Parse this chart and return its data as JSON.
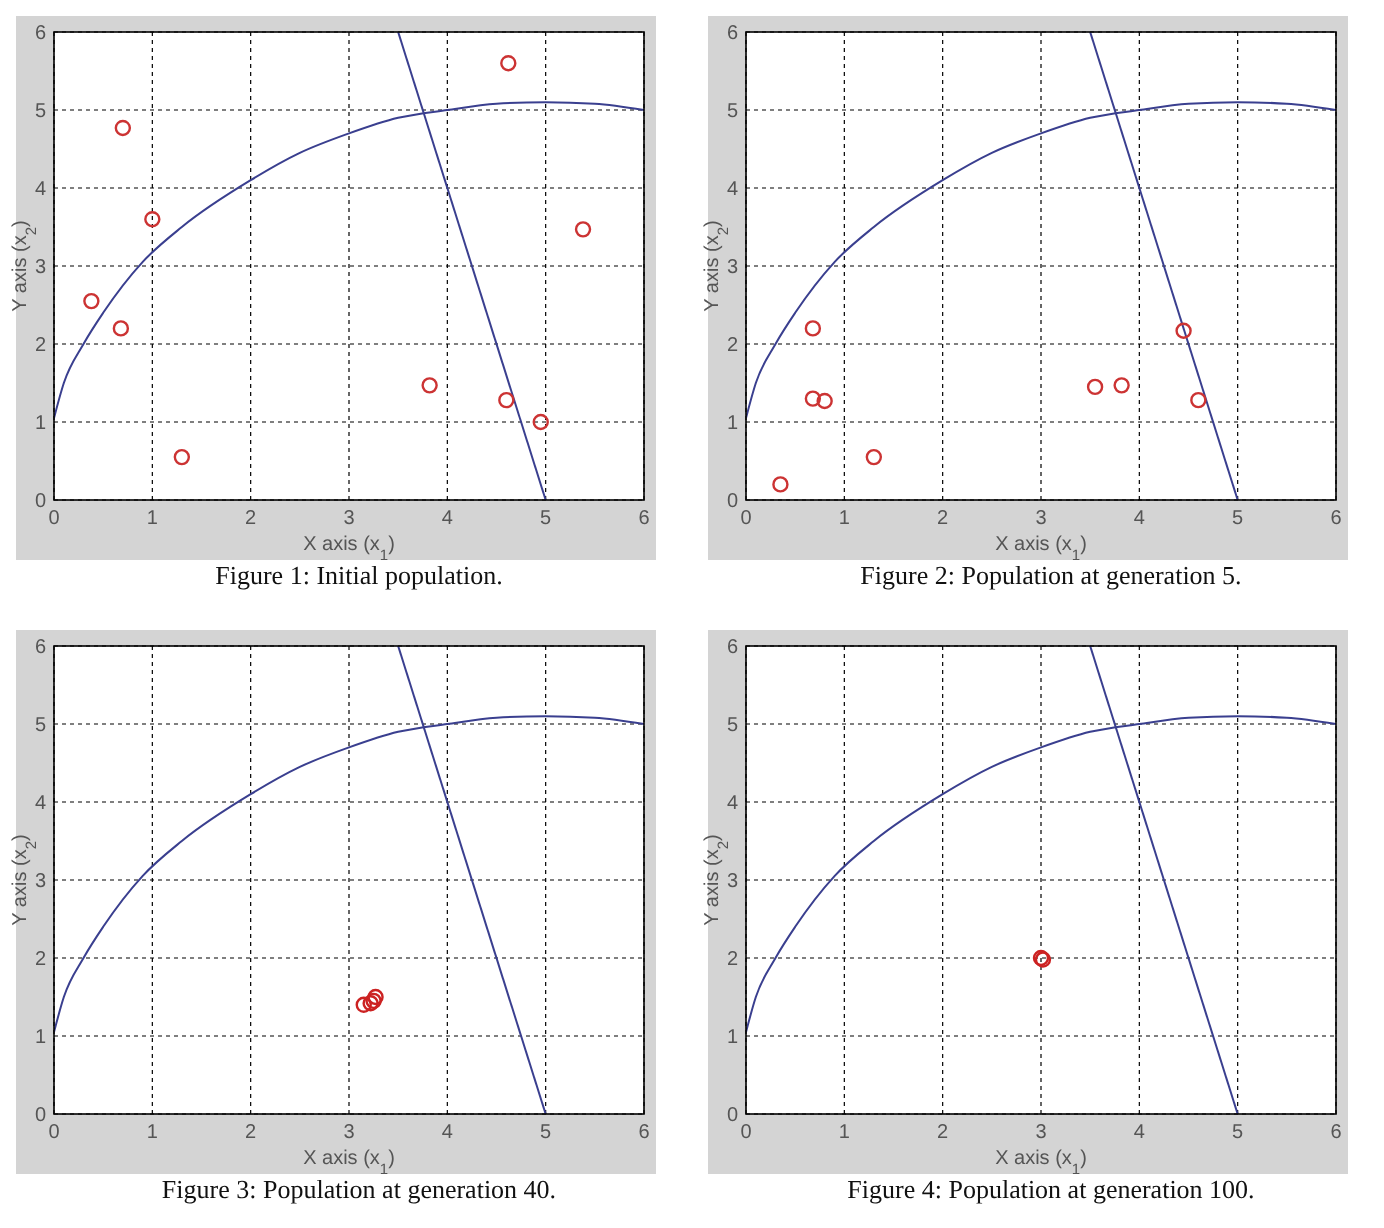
{
  "chart_data": [
    {
      "type": "scatter",
      "title": "Figure 1: Initial population.",
      "xlabel": "X axis (x$_{1}$)",
      "ylabel": "Y axis (x$_{2}$)",
      "xlim": [
        0,
        6
      ],
      "ylim": [
        0,
        6
      ],
      "xticks": [
        0,
        1,
        2,
        3,
        4,
        5,
        6
      ],
      "yticks": [
        0,
        1,
        2,
        3,
        4,
        5,
        6
      ],
      "grid": true,
      "marker": "circle",
      "series": [
        {
          "type": "line",
          "color": "#3a3f8f",
          "marker": "none",
          "x": [
            0,
            0.1,
            0.3,
            0.5,
            0.9,
            1.3,
            2,
            2.5,
            3,
            3.5,
            4,
            4.5,
            5,
            5.5,
            6
          ],
          "values": [
            1.05,
            1.5,
            2,
            2.4,
            3.05,
            3.5,
            4.1,
            4.45,
            4.7,
            4.9,
            5,
            5.08,
            5.1,
            5.08,
            5
          ]
        },
        {
          "type": "line",
          "color": "#3a3f8f",
          "marker": "none",
          "x": [
            3.5,
            5
          ],
          "values": [
            6,
            0
          ]
        },
        {
          "color": "#cc3333",
          "x": [
            0.38,
            0.7,
            0.68,
            1,
            1.3,
            3.82,
            4.62,
            4.6,
            4.95,
            5.38
          ],
          "values": [
            2.55,
            4.77,
            2.2,
            3.6,
            0.55,
            1.47,
            5.6,
            1.28,
            1,
            3.47
          ]
        }
      ]
    },
    {
      "type": "scatter",
      "title": "Figure 2: Population at generation 5.",
      "xlabel": "X axis (x$_{1}$)",
      "ylabel": "Y axis (x$_{2}$)",
      "xlim": [
        0,
        6
      ],
      "ylim": [
        0,
        6
      ],
      "xticks": [
        0,
        1,
        2,
        3,
        4,
        5,
        6
      ],
      "yticks": [
        0,
        1,
        2,
        3,
        4,
        5,
        6
      ],
      "grid": true,
      "marker": "circle",
      "series": [
        {
          "type": "line",
          "color": "#3a3f8f",
          "marker": "none",
          "x": [
            0,
            0.1,
            0.3,
            0.5,
            0.9,
            1.3,
            2,
            2.5,
            3,
            3.5,
            4,
            4.5,
            5,
            5.5,
            6
          ],
          "values": [
            1.05,
            1.5,
            2,
            2.4,
            3.05,
            3.5,
            4.1,
            4.45,
            4.7,
            4.9,
            5,
            5.08,
            5.1,
            5.08,
            5
          ]
        },
        {
          "type": "line",
          "color": "#3a3f8f",
          "marker": "none",
          "x": [
            3.5,
            5
          ],
          "values": [
            6,
            0
          ]
        },
        {
          "color": "#cc3333",
          "x": [
            0.35,
            0.68,
            0.68,
            0.8,
            1.3,
            3.55,
            3.82,
            4.45,
            4.6
          ],
          "values": [
            0.2,
            2.2,
            1.3,
            1.27,
            0.55,
            1.45,
            1.47,
            2.17,
            1.28
          ]
        }
      ]
    },
    {
      "type": "scatter",
      "title": "Figure 3: Population at generation 40.",
      "xlabel": "X axis (x$_{1}$)",
      "ylabel": "Y axis (x$_{2}$)",
      "xlim": [
        0,
        6
      ],
      "ylim": [
        0,
        6
      ],
      "xticks": [
        0,
        1,
        2,
        3,
        4,
        5,
        6
      ],
      "yticks": [
        0,
        1,
        2,
        3,
        4,
        5,
        6
      ],
      "grid": true,
      "marker": "circle",
      "series": [
        {
          "type": "line",
          "color": "#3a3f8f",
          "marker": "none",
          "x": [
            0,
            0.1,
            0.3,
            0.5,
            0.9,
            1.3,
            2,
            2.5,
            3,
            3.5,
            4,
            4.5,
            5,
            5.5,
            6
          ],
          "values": [
            1.05,
            1.5,
            2,
            2.4,
            3.05,
            3.5,
            4.1,
            4.45,
            4.7,
            4.9,
            5,
            5.08,
            5.1,
            5.08,
            5
          ]
        },
        {
          "type": "line",
          "color": "#3a3f8f",
          "marker": "none",
          "x": [
            3.5,
            5
          ],
          "values": [
            6,
            0
          ]
        },
        {
          "color": "#cc2222",
          "x": [
            3.15,
            3.22,
            3.25,
            3.27
          ],
          "values": [
            1.4,
            1.42,
            1.45,
            1.5
          ]
        }
      ]
    },
    {
      "type": "scatter",
      "title": "Figure 4: Population at generation 100.",
      "xlabel": "X axis (x$_{1}$)",
      "ylabel": "Y axis (x$_{2}$)",
      "xlim": [
        0,
        6
      ],
      "ylim": [
        0,
        6
      ],
      "xticks": [
        0,
        1,
        2,
        3,
        4,
        5,
        6
      ],
      "yticks": [
        0,
        1,
        2,
        3,
        4,
        5,
        6
      ],
      "grid": true,
      "marker": "circle",
      "series": [
        {
          "type": "line",
          "color": "#3a3f8f",
          "marker": "none",
          "x": [
            0,
            0.1,
            0.3,
            0.5,
            0.9,
            1.3,
            2,
            2.5,
            3,
            3.5,
            4,
            4.5,
            5,
            5.5,
            6
          ],
          "values": [
            1.05,
            1.5,
            2,
            2.4,
            3.05,
            3.5,
            4.1,
            4.45,
            4.7,
            4.9,
            5,
            5.08,
            5.1,
            5.08,
            5
          ]
        },
        {
          "type": "line",
          "color": "#3a3f8f",
          "marker": "none",
          "x": [
            3.5,
            5
          ],
          "values": [
            6,
            0
          ]
        },
        {
          "color": "#cc2222",
          "x": [
            3,
            3.02
          ],
          "values": [
            2,
            1.98
          ]
        }
      ]
    }
  ]
}
